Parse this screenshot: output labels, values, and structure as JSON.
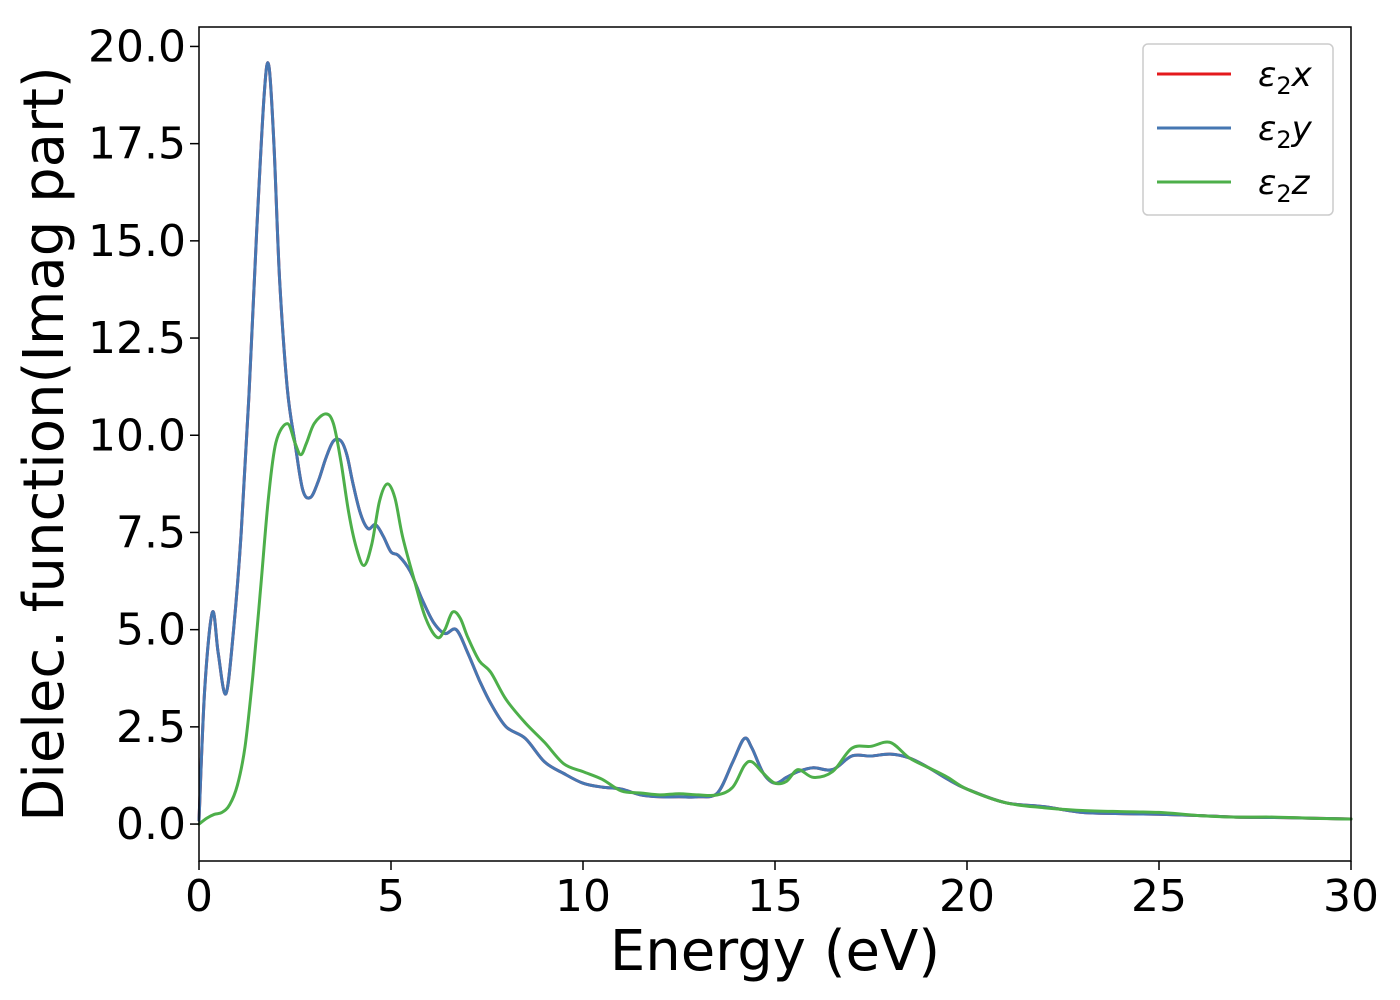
{
  "chart_data": {
    "type": "line",
    "title": "",
    "xlabel": "Energy (eV)",
    "ylabel": "Dielec. function(Imag part)",
    "xlim": [
      0,
      30
    ],
    "ylim": [
      -0.95,
      20.5
    ],
    "xticks": [
      0,
      5,
      10,
      15,
      20,
      25,
      30
    ],
    "yticks": [
      0.0,
      2.5,
      5.0,
      7.5,
      10.0,
      12.5,
      15.0,
      17.5,
      20.0
    ],
    "xtick_labels": [
      "0",
      "5",
      "10",
      "15",
      "20",
      "25",
      "30"
    ],
    "ytick_labels": [
      "0.0",
      "2.5",
      "5.0",
      "7.5",
      "10.0",
      "12.5",
      "15.0",
      "17.5",
      "20.0"
    ],
    "grid": false,
    "legend_position": "top-right",
    "series": [
      {
        "name": "ε₂x",
        "legend_base": "ε",
        "legend_sub": "2",
        "legend_suffix": "x",
        "color": "#e41a1c",
        "x": [
          0.0,
          0.15,
          0.35,
          0.5,
          0.7,
          0.9,
          1.1,
          1.3,
          1.5,
          1.7,
          1.82,
          1.95,
          2.1,
          2.3,
          2.5,
          2.7,
          2.9,
          3.1,
          3.3,
          3.5,
          3.7,
          3.85,
          4.0,
          4.2,
          4.4,
          4.6,
          4.8,
          5.0,
          5.2,
          5.5,
          5.8,
          6.1,
          6.4,
          6.7,
          7.0,
          7.3,
          7.6,
          8.0,
          8.5,
          9.0,
          9.5,
          10.0,
          10.5,
          11.0,
          11.5,
          12.0,
          12.5,
          13.0,
          13.5,
          13.9,
          14.2,
          14.4,
          14.7,
          15.0,
          15.3,
          15.6,
          16.0,
          16.5,
          17.0,
          17.5,
          18.0,
          18.5,
          19.0,
          19.5,
          20.0,
          21.0,
          22.0,
          23.0,
          24.0,
          25.0,
          26.0,
          27.0,
          28.0,
          29.0,
          30.0
        ],
        "y": [
          0.1,
          3.5,
          5.45,
          4.4,
          3.35,
          5.0,
          7.5,
          11.0,
          15.2,
          18.8,
          19.5,
          17.5,
          14.0,
          11.2,
          9.8,
          8.6,
          8.4,
          8.8,
          9.4,
          9.85,
          9.85,
          9.5,
          8.8,
          8.0,
          7.6,
          7.7,
          7.4,
          7.0,
          6.9,
          6.5,
          5.8,
          5.2,
          4.9,
          5.0,
          4.4,
          3.7,
          3.1,
          2.5,
          2.2,
          1.6,
          1.3,
          1.05,
          0.95,
          0.9,
          0.75,
          0.7,
          0.7,
          0.7,
          0.8,
          1.6,
          2.2,
          1.95,
          1.3,
          1.05,
          1.2,
          1.35,
          1.45,
          1.4,
          1.75,
          1.75,
          1.8,
          1.7,
          1.45,
          1.15,
          0.9,
          0.55,
          0.45,
          0.3,
          0.27,
          0.25,
          0.22,
          0.18,
          0.17,
          0.15,
          0.13
        ]
      },
      {
        "name": "ε₂y",
        "legend_base": "ε",
        "legend_sub": "2",
        "legend_suffix": "y",
        "color": "#4677b2",
        "x": [
          0.0,
          0.15,
          0.35,
          0.5,
          0.7,
          0.9,
          1.1,
          1.3,
          1.5,
          1.7,
          1.82,
          1.95,
          2.1,
          2.3,
          2.5,
          2.7,
          2.9,
          3.1,
          3.3,
          3.5,
          3.7,
          3.85,
          4.0,
          4.2,
          4.4,
          4.6,
          4.8,
          5.0,
          5.2,
          5.5,
          5.8,
          6.1,
          6.4,
          6.7,
          7.0,
          7.3,
          7.6,
          8.0,
          8.5,
          9.0,
          9.5,
          10.0,
          10.5,
          11.0,
          11.5,
          12.0,
          12.5,
          13.0,
          13.5,
          13.9,
          14.2,
          14.4,
          14.7,
          15.0,
          15.3,
          15.6,
          16.0,
          16.5,
          17.0,
          17.5,
          18.0,
          18.5,
          19.0,
          19.5,
          20.0,
          21.0,
          22.0,
          23.0,
          24.0,
          25.0,
          26.0,
          27.0,
          28.0,
          29.0,
          30.0
        ],
        "y": [
          0.1,
          3.5,
          5.45,
          4.4,
          3.35,
          5.0,
          7.5,
          11.0,
          15.2,
          18.8,
          19.5,
          17.5,
          14.0,
          11.2,
          9.8,
          8.6,
          8.4,
          8.8,
          9.4,
          9.85,
          9.85,
          9.5,
          8.8,
          8.0,
          7.6,
          7.7,
          7.4,
          7.0,
          6.9,
          6.5,
          5.8,
          5.2,
          4.9,
          5.0,
          4.4,
          3.7,
          3.1,
          2.5,
          2.2,
          1.6,
          1.3,
          1.05,
          0.95,
          0.9,
          0.75,
          0.7,
          0.7,
          0.7,
          0.8,
          1.6,
          2.2,
          1.95,
          1.3,
          1.05,
          1.2,
          1.35,
          1.45,
          1.4,
          1.75,
          1.75,
          1.8,
          1.7,
          1.45,
          1.15,
          0.9,
          0.55,
          0.45,
          0.3,
          0.27,
          0.25,
          0.22,
          0.18,
          0.17,
          0.15,
          0.13
        ]
      },
      {
        "name": "ε₂z",
        "legend_base": "ε",
        "legend_sub": "2",
        "legend_suffix": "z",
        "color": "#4daf4a",
        "x": [
          0.0,
          0.2,
          0.4,
          0.6,
          0.8,
          1.0,
          1.2,
          1.4,
          1.6,
          1.8,
          2.0,
          2.3,
          2.5,
          2.65,
          2.8,
          3.0,
          3.3,
          3.5,
          3.7,
          3.9,
          4.1,
          4.3,
          4.5,
          4.7,
          4.9,
          5.1,
          5.3,
          5.6,
          5.9,
          6.2,
          6.4,
          6.6,
          6.8,
          7.0,
          7.3,
          7.6,
          8.0,
          8.5,
          9.0,
          9.5,
          10.0,
          10.5,
          11.0,
          11.5,
          12.0,
          12.5,
          13.0,
          13.5,
          13.9,
          14.2,
          14.4,
          14.7,
          15.0,
          15.3,
          15.6,
          16.0,
          16.5,
          17.0,
          17.5,
          18.0,
          18.5,
          19.0,
          19.5,
          20.0,
          21.0,
          22.0,
          23.0,
          24.0,
          25.0,
          26.0,
          27.0,
          28.0,
          29.0,
          30.0
        ],
        "y": [
          0.0,
          0.15,
          0.25,
          0.3,
          0.5,
          1.0,
          2.0,
          3.8,
          6.0,
          8.3,
          9.8,
          10.3,
          9.8,
          9.5,
          9.8,
          10.3,
          10.55,
          10.3,
          9.3,
          8.0,
          7.1,
          6.65,
          7.2,
          8.3,
          8.75,
          8.4,
          7.4,
          6.3,
          5.3,
          4.8,
          5.0,
          5.45,
          5.3,
          4.8,
          4.2,
          3.9,
          3.2,
          2.6,
          2.1,
          1.55,
          1.35,
          1.15,
          0.85,
          0.8,
          0.75,
          0.78,
          0.75,
          0.75,
          0.95,
          1.5,
          1.6,
          1.3,
          1.05,
          1.1,
          1.4,
          1.2,
          1.35,
          1.95,
          2.0,
          2.1,
          1.7,
          1.45,
          1.2,
          0.9,
          0.55,
          0.42,
          0.35,
          0.32,
          0.3,
          0.22,
          0.18,
          0.18,
          0.15,
          0.13
        ]
      }
    ]
  }
}
